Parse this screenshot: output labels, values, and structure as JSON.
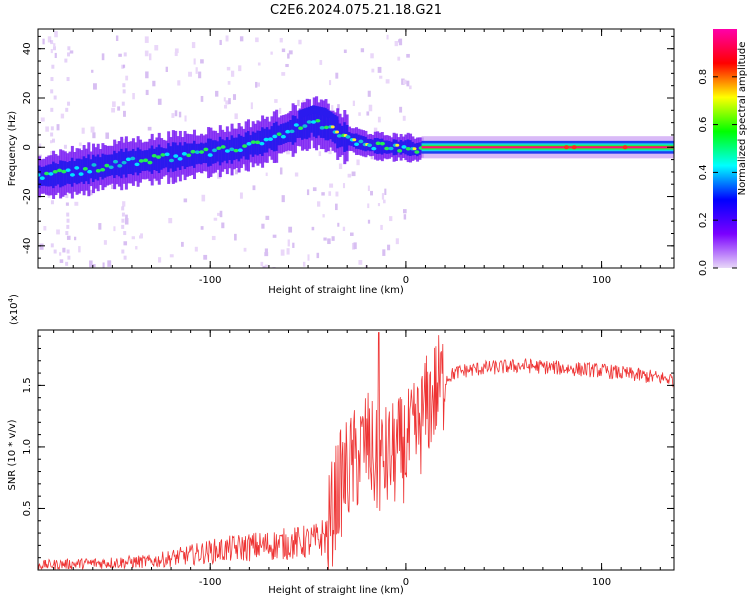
{
  "title": "C2E6.2024.075.21.18.G21",
  "chart_data": [
    {
      "type": "heatmap",
      "xlabel": "Height of straight line (km)",
      "ylabel": "Frequency (Hz)",
      "xlim": [
        -188,
        137
      ],
      "ylim": [
        -49,
        48
      ],
      "xticks": [
        -100,
        0,
        100
      ],
      "yticks": [
        -40,
        -20,
        0,
        20,
        40
      ],
      "xtick_labels": [
        "-100",
        "0",
        "100"
      ],
      "ytick_labels": [
        "-40",
        "-20",
        "0",
        "20",
        "40"
      ],
      "grid": false,
      "colorbar": {
        "label": "Normalized spectral amplitude",
        "range": [
          0,
          1
        ],
        "ticks": [
          0.0,
          0.2,
          0.4,
          0.6,
          0.8
        ],
        "tick_labels": [
          "0.0",
          "0.2",
          "0.4",
          "0.6",
          "0.8"
        ],
        "colors": [
          "#e8d8f8",
          "#7a00ff",
          "#0000ff",
          "#00ffff",
          "#00ff00",
          "#ffff00",
          "#ff0000",
          "#ff00aa"
        ]
      },
      "ridge": {
        "x": [
          -188,
          -170,
          -150,
          -130,
          -110,
          -90,
          -75,
          -65,
          -55,
          -48,
          -42,
          -35,
          -28,
          -20,
          -10,
          0,
          5,
          8,
          20,
          60,
          100,
          137
        ],
        "y": [
          -12,
          -10,
          -7,
          -5,
          -3,
          -1,
          2,
          5,
          8,
          10,
          9,
          5,
          3,
          1,
          0,
          0,
          -1,
          0,
          0,
          0,
          0,
          0
        ]
      }
    },
    {
      "type": "line",
      "xlabel": "Height of straight line (km)",
      "ylabel": "SNR (10 * v/v)",
      "y_multiplier": "(x10",
      "y_multiplier_exp": "4",
      "y_multiplier_close": ")",
      "xlim": [
        -188,
        137
      ],
      "ylim": [
        0,
        1.95
      ],
      "xticks": [
        -100,
        0,
        100
      ],
      "yticks": [
        0.5,
        1.0,
        1.5
      ],
      "xtick_labels": [
        "-100",
        "0",
        "100"
      ],
      "ytick_labels": [
        "0.5",
        "1.0",
        "1.5"
      ],
      "grid": false,
      "series": [
        {
          "color": "#ee3333",
          "x": [
            -188,
            -170,
            -150,
            -130,
            -115,
            -100,
            -85,
            -70,
            -55,
            -45,
            -40,
            -35,
            -30,
            -25,
            -20,
            -15,
            -10,
            -5,
            0,
            5,
            10,
            15,
            20,
            25,
            30,
            40,
            50,
            60,
            70,
            80,
            90,
            100,
            110,
            120,
            130,
            137
          ],
          "y": [
            0.04,
            0.05,
            0.06,
            0.07,
            0.11,
            0.15,
            0.18,
            0.2,
            0.22,
            0.24,
            0.3,
            0.65,
            0.8,
            0.9,
            1.05,
            0.85,
            0.9,
            0.95,
            1.0,
            1.1,
            1.3,
            1.45,
            1.55,
            1.6,
            1.62,
            1.64,
            1.65,
            1.66,
            1.65,
            1.64,
            1.63,
            1.62,
            1.6,
            1.58,
            1.56,
            1.55
          ],
          "spike": {
            "x": -14,
            "y": 1.93
          }
        }
      ]
    }
  ]
}
